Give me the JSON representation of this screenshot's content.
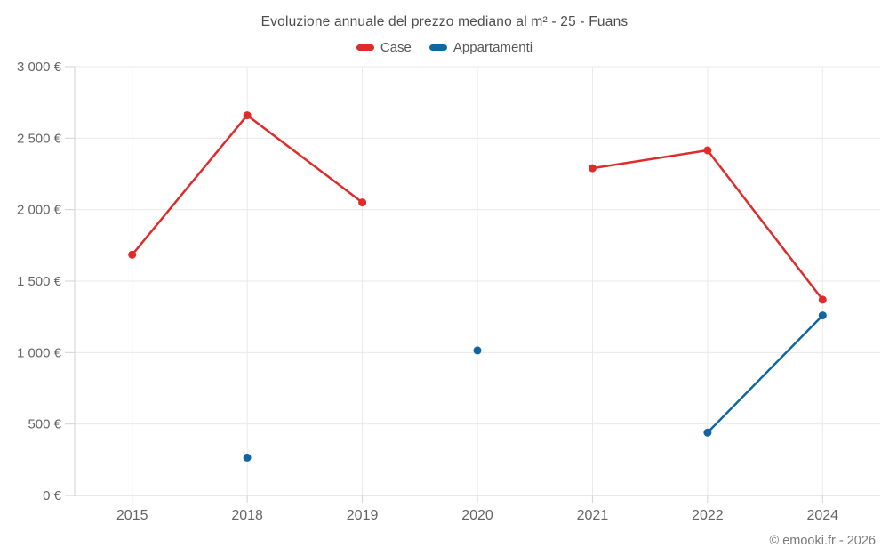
{
  "chart": {
    "title": "Evoluzione annuale del prezzo mediano al m² - 25 - Fuans"
  },
  "footer": {
    "text": "© emooki.fr - 2026"
  },
  "chart_data": {
    "type": "line",
    "title": "Evoluzione annuale del prezzo mediano al m² - 25 - Fuans",
    "categories": [
      "2015",
      "2018",
      "2019",
      "2020",
      "2021",
      "2022",
      "2024"
    ],
    "series": [
      {
        "name": "Case",
        "color": "#e02b2b",
        "values": [
          1685,
          2660,
          2050,
          null,
          2290,
          2415,
          1370
        ]
      },
      {
        "name": "Appartamenti",
        "color": "#1166a2",
        "values": [
          null,
          265,
          null,
          1015,
          null,
          440,
          1260
        ]
      }
    ],
    "xlabel": "",
    "ylabel": "",
    "ylim": [
      0,
      3000
    ],
    "ytick_step": 500,
    "ytick_labels": [
      "0 €",
      "500 €",
      "1 000 €",
      "1 500 €",
      "2 000 €",
      "2 500 €",
      "3 000 €"
    ],
    "grid": true,
    "legend_position": "top",
    "annotations": []
  },
  "colors": {
    "background": "#ffffff",
    "grid": "#e9e9e9",
    "axis": "#d2d2d2",
    "tick_label": "#646464",
    "title_text": "#4d4d4d",
    "legend_text": "#565656",
    "footer_text": "#7a7a7a"
  }
}
